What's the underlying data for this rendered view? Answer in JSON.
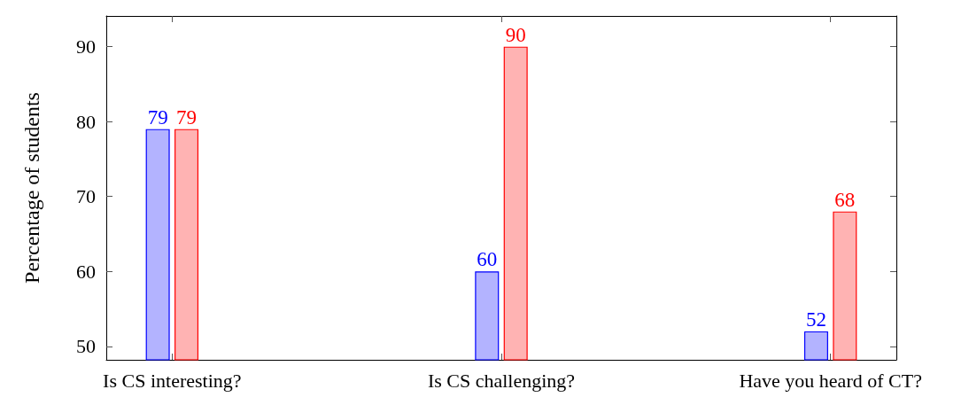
{
  "chart_data": {
    "type": "bar",
    "ylabel": "Percentage of students",
    "categories": [
      "Is CS interesting?",
      "Is CS challenging?",
      "Have you heard of CT?"
    ],
    "series": [
      {
        "color": "#0000ff",
        "values": [
          79,
          60,
          52
        ]
      },
      {
        "color": "#ff0000",
        "values": [
          79,
          90,
          68
        ]
      }
    ],
    "ylim": [
      48.2,
      94.1
    ],
    "yticks": [
      50,
      60,
      70,
      80,
      90
    ],
    "grid": false,
    "legend": false,
    "data_labels": true
  }
}
